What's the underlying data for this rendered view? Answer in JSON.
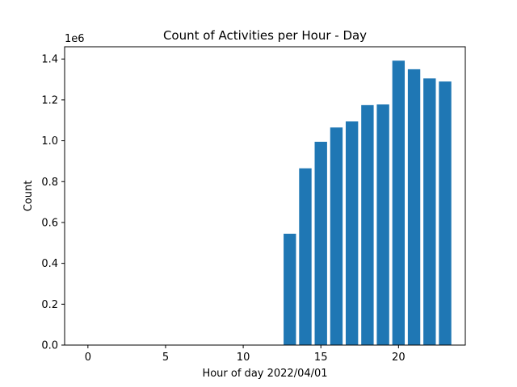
{
  "chart_data": {
    "type": "bar",
    "title": "Count of Activities per Hour - Day",
    "xlabel": "Hour of day 2022/04/01",
    "ylabel": "Count",
    "y_scale_label": "1e6",
    "x": [
      13,
      14,
      15,
      16,
      17,
      18,
      19,
      20,
      21,
      22,
      23
    ],
    "values": [
      545000,
      865000,
      995000,
      1065000,
      1095000,
      1175000,
      1178000,
      1392000,
      1350000,
      1305000,
      1290000
    ],
    "xlim": [
      -1.5,
      24.3
    ],
    "ylim": [
      0,
      1460000
    ],
    "x_ticks": [
      0,
      5,
      10,
      15,
      20
    ],
    "y_ticks": [
      0,
      200000,
      400000,
      600000,
      800000,
      1000000,
      1200000,
      1400000
    ],
    "y_tick_labels": [
      "0.0",
      "0.2",
      "0.4",
      "0.6",
      "0.8",
      "1.0",
      "1.2",
      "1.4"
    ],
    "bar_color": "#1f77b4",
    "grid": false,
    "legend": "none"
  }
}
